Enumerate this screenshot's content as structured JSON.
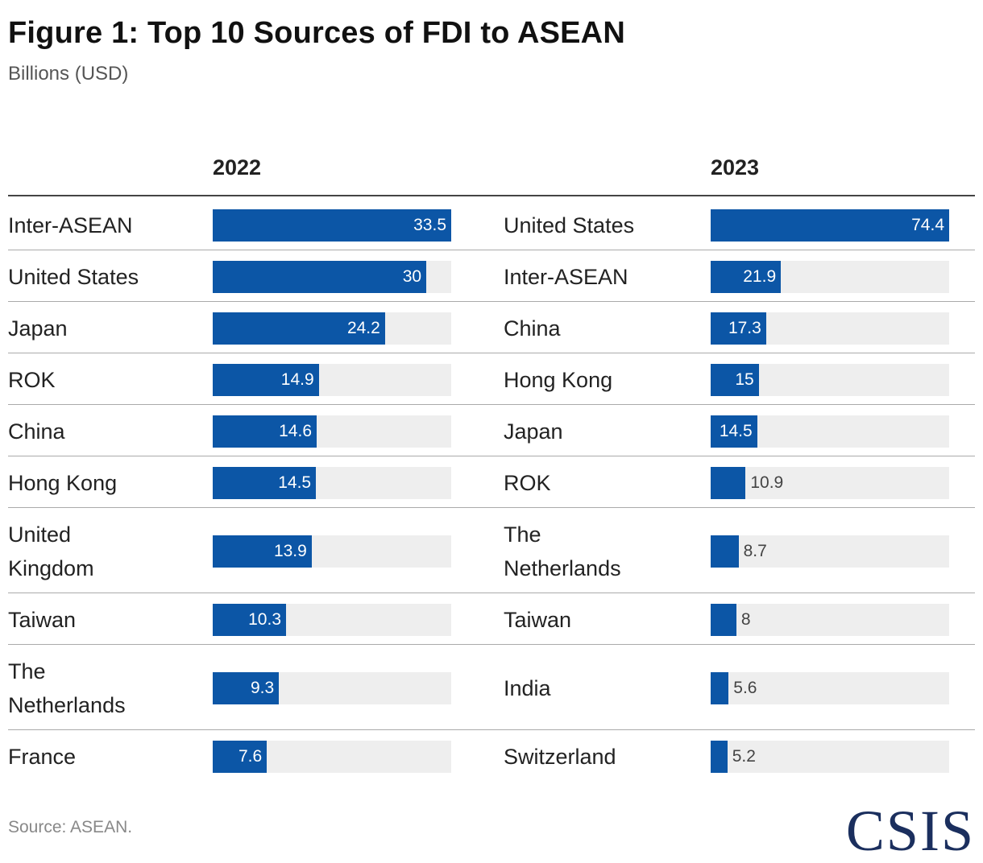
{
  "title": "Figure 1: Top 10 Sources of FDI to ASEAN",
  "subtitle": "Billions (USD)",
  "source": "Source: ASEAN.",
  "logo_text": "CSIS",
  "colors": {
    "bar": "#0c56a6",
    "track": "#eeeeee",
    "logo": "#1b2f5e"
  },
  "chart_data": [
    {
      "type": "bar",
      "orientation": "horizontal",
      "title": "2022",
      "xlim": [
        0,
        33.5
      ],
      "categories": [
        "Inter-ASEAN",
        "United States",
        "Japan",
        "ROK",
        "China",
        "Hong Kong",
        "United Kingdom",
        "Taiwan",
        "The Netherlands",
        "France"
      ],
      "values": [
        33.5,
        30,
        24.2,
        14.9,
        14.6,
        14.5,
        13.9,
        10.3,
        9.3,
        7.6
      ],
      "value_labels": [
        "33.5",
        "30",
        "24.2",
        "14.9",
        "14.6",
        "14.5",
        "13.9",
        "10.3",
        "9.3",
        "7.6"
      ]
    },
    {
      "type": "bar",
      "orientation": "horizontal",
      "title": "2023",
      "xlim": [
        0,
        74.4
      ],
      "categories": [
        "United States",
        "Inter-ASEAN",
        "China",
        "Hong Kong",
        "Japan",
        "ROK",
        "The Netherlands",
        "Taiwan",
        "India",
        "Switzerland"
      ],
      "values": [
        74.4,
        21.9,
        17.3,
        15,
        14.5,
        10.9,
        8.7,
        8,
        5.6,
        5.2
      ],
      "value_labels": [
        "74.4",
        "21.9",
        "17.3",
        "15",
        "14.5",
        "10.9",
        "8.7",
        "8",
        "5.6",
        "5.2"
      ]
    }
  ]
}
